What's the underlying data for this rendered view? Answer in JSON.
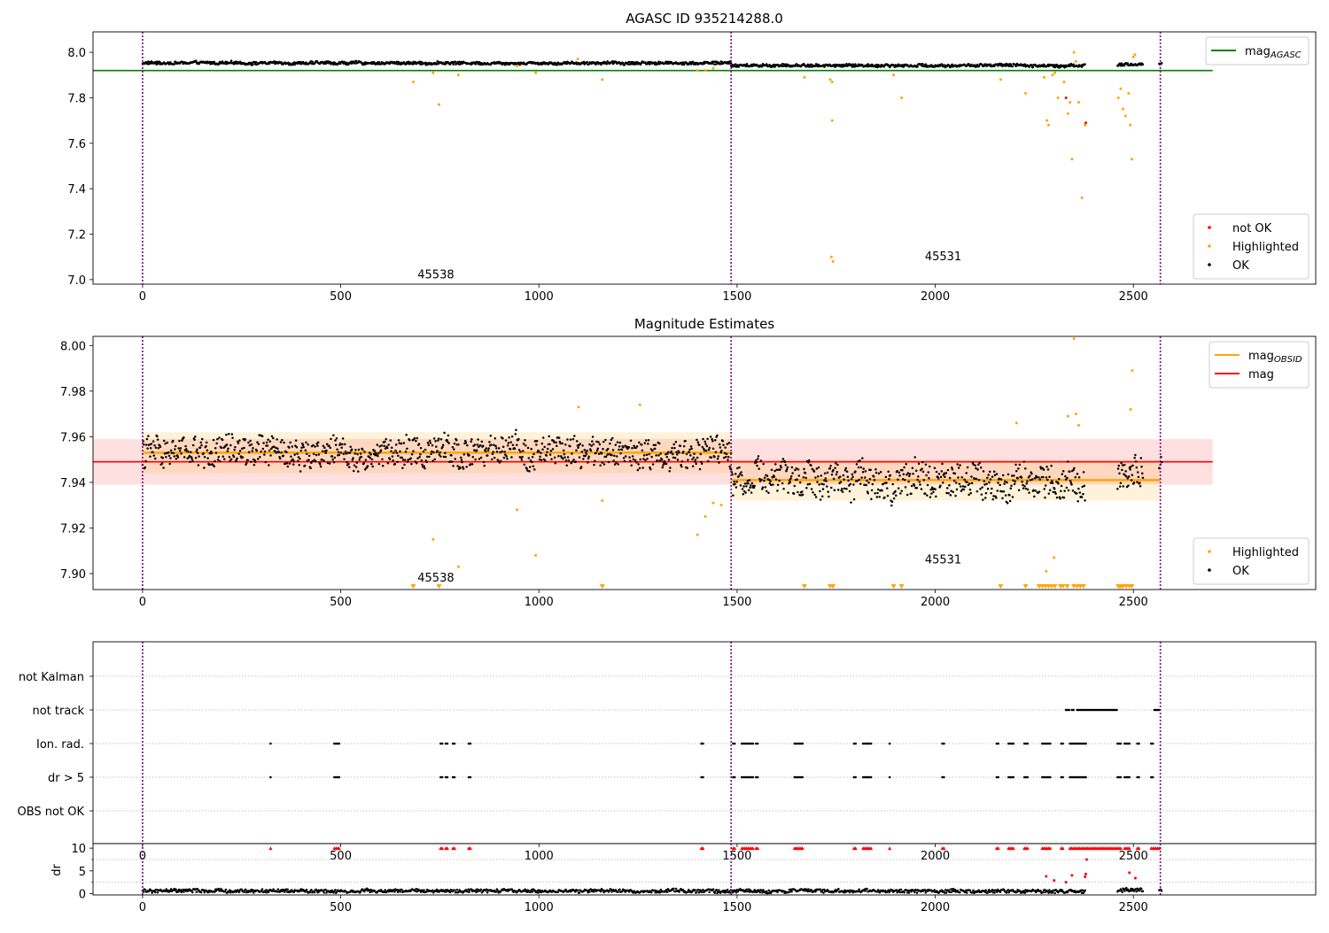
{
  "chart_data": [
    {
      "type": "scatter",
      "title": "AGASC ID 935214288.0",
      "xlim": [
        -125,
        2960
      ],
      "ylim": [
        6.98,
        8.09
      ],
      "xticks": [
        0,
        500,
        1000,
        1500,
        2000,
        2500
      ],
      "yticks": [
        7.0,
        7.2,
        7.4,
        7.6,
        7.8,
        8.0
      ],
      "ytick_labels": [
        "7.0",
        "7.2",
        "7.4",
        "7.6",
        "7.8",
        "8.0"
      ],
      "vlines": [
        0,
        1485,
        2568
      ],
      "hlines": [
        {
          "y": 7.92,
          "x0": -125,
          "x1": 2700,
          "color": "#008000"
        }
      ],
      "obsid_labels": [
        {
          "text": "45538",
          "x": 740,
          "y": 7.02
        },
        {
          "text": "45531",
          "x": 2020,
          "y": 7.1
        }
      ],
      "legend_upper": [
        {
          "label": "mag",
          "sub": "AGASC",
          "color": "#008000",
          "marker": "line"
        }
      ],
      "legend_lower": [
        {
          "label": "not OK",
          "color": "#ff0000",
          "marker": "dot"
        },
        {
          "label": "Highlighted",
          "color": "#ffa500",
          "marker": "dot"
        },
        {
          "label": "OK",
          "color": "#000000",
          "marker": "dot"
        }
      ],
      "series": [
        {
          "name": "OK",
          "color": "#000000",
          "segments": [
            {
              "x0": 0,
              "x1": 1485,
              "mean": 7.953,
              "spread": 0.006
            },
            {
              "x0": 1485,
              "x1": 2378,
              "mean": 7.942,
              "spread": 0.006
            },
            {
              "x0": 2460,
              "x1": 2525,
              "mean": 7.946,
              "spread": 0.006
            },
            {
              "x0": 2565,
              "x1": 2572,
              "mean": 7.95,
              "spread": 0.004
            }
          ]
        },
        {
          "name": "Highlighted",
          "color": "#ffa500",
          "points": [
            [
              683,
              7.87
            ],
            [
              733,
              7.91
            ],
            [
              748,
              7.77
            ],
            [
              797,
              7.9
            ],
            [
              945,
              7.94
            ],
            [
              992,
              7.91
            ],
            [
              1098,
              7.97
            ],
            [
              1160,
              7.88
            ],
            [
              1400,
              7.92
            ],
            [
              1420,
              7.92
            ],
            [
              1440,
              7.93
            ],
            [
              1670,
              7.89
            ],
            [
              1735,
              7.88
            ],
            [
              1740,
              7.87
            ],
            [
              1740,
              7.7
            ],
            [
              1738,
              7.1
            ],
            [
              1742,
              7.08
            ],
            [
              1895,
              7.9
            ],
            [
              1915,
              7.8
            ],
            [
              2165,
              7.88
            ],
            [
              2228,
              7.82
            ],
            [
              2275,
              7.89
            ],
            [
              2282,
              7.7
            ],
            [
              2286,
              7.68
            ],
            [
              2296,
              7.9
            ],
            [
              2302,
              7.91
            ],
            [
              2310,
              7.8
            ],
            [
              2325,
              7.87
            ],
            [
              2335,
              7.73
            ],
            [
              2340,
              7.78
            ],
            [
              2345,
              7.53
            ],
            [
              2350,
              8.0
            ],
            [
              2355,
              7.96
            ],
            [
              2362,
              7.78
            ],
            [
              2370,
              7.36
            ],
            [
              2378,
              7.68
            ],
            [
              2462,
              7.8
            ],
            [
              2468,
              7.84
            ],
            [
              2474,
              7.75
            ],
            [
              2480,
              7.72
            ],
            [
              2488,
              7.82
            ],
            [
              2492,
              7.68
            ],
            [
              2496,
              7.53
            ],
            [
              2500,
              7.98
            ],
            [
              2504,
              7.99
            ]
          ]
        },
        {
          "name": "not OK",
          "color": "#ff0000",
          "points": [
            [
              2330,
              7.8
            ],
            [
              2380,
              7.69
            ]
          ]
        }
      ]
    },
    {
      "type": "scatter",
      "title": "Magnitude Estimates",
      "xlim": [
        -125,
        2960
      ],
      "ylim": [
        7.893,
        8.004
      ],
      "xticks": [
        0,
        500,
        1000,
        1500,
        2000,
        2500
      ],
      "yticks": [
        7.9,
        7.92,
        7.94,
        7.96,
        7.98,
        8.0
      ],
      "ytick_labels": [
        "7.90",
        "7.92",
        "7.94",
        "7.96",
        "7.98",
        "8.00"
      ],
      "vlines": [
        0,
        1485,
        2568
      ],
      "mag_band": {
        "x0": -125,
        "x1": 2700,
        "mean": 7.949,
        "low": 7.939,
        "high": 7.959,
        "color": "#ff0000"
      },
      "obsid_mag": [
        {
          "x0": 0,
          "x1": 1485,
          "mean": 7.953,
          "low": 7.944,
          "high": 7.962
        },
        {
          "x0": 1485,
          "x1": 2568,
          "mean": 7.941,
          "low": 7.932,
          "high": 7.95
        }
      ],
      "obsid_labels": [
        {
          "text": "45538",
          "x": 740,
          "y": 7.898
        },
        {
          "text": "45531",
          "x": 2020,
          "y": 7.906
        }
      ],
      "legend_upper": [
        {
          "label": "mag",
          "sub": "OBSID",
          "color": "#ffa500",
          "marker": "line"
        },
        {
          "label": "mag",
          "sub": "",
          "color": "#ff0000",
          "marker": "line"
        }
      ],
      "legend_lower": [
        {
          "label": "Highlighted",
          "color": "#ffa500",
          "marker": "dot"
        },
        {
          "label": "OK",
          "color": "#000000",
          "marker": "dot"
        }
      ],
      "series": [
        {
          "name": "OK",
          "color": "#000000",
          "segments": [
            {
              "x0": 0,
              "x1": 1485,
              "mean": 7.953,
              "spread": 0.006
            },
            {
              "x0": 1485,
              "x1": 2378,
              "mean": 7.941,
              "spread": 0.007
            },
            {
              "x0": 2460,
              "x1": 2525,
              "mean": 7.944,
              "spread": 0.007
            },
            {
              "x0": 2565,
              "x1": 2572,
              "mean": 7.95,
              "spread": 0.004
            }
          ]
        },
        {
          "name": "Highlighted",
          "color": "#ffa500",
          "points": [
            [
              945,
              7.928
            ],
            [
              1100,
              7.973
            ],
            [
              1160,
              7.932
            ],
            [
              1255,
              7.974
            ],
            [
              1400,
              7.917
            ],
            [
              1420,
              7.925
            ],
            [
              1440,
              7.931
            ],
            [
              1460,
              7.93
            ],
            [
              733,
              7.915
            ],
            [
              797,
              7.903
            ],
            [
              992,
              7.908
            ],
            [
              2205,
              7.966
            ],
            [
              2280,
              7.901
            ],
            [
              2300,
              7.907
            ],
            [
              2335,
              7.969
            ],
            [
              2355,
              7.97
            ],
            [
              2362,
              7.965
            ],
            [
              2493,
              7.972
            ],
            [
              2497,
              7.989
            ],
            [
              2350,
              8.003
            ]
          ]
        },
        {
          "name": "Highlighted (below axis)",
          "color": "#ffa500",
          "marker": "triangle-down",
          "x": [
            683,
            748,
            1160,
            1670,
            1735,
            1742,
            1895,
            1915,
            2165,
            2228,
            2262,
            2270,
            2278,
            2286,
            2294,
            2302,
            2316,
            2322,
            2333,
            2350,
            2358,
            2366,
            2374,
            2462,
            2466,
            2470,
            2474,
            2482,
            2490,
            2496
          ]
        }
      ]
    },
    {
      "type": "scatter",
      "title": "",
      "xlim": [
        -125,
        2960
      ],
      "xticks": [
        0,
        500,
        1000,
        1500,
        2000,
        2500
      ],
      "vlines": [
        0,
        1485,
        2568
      ],
      "categories": [
        "not Kalman",
        "not track",
        "Ion. rad.",
        "dr > 5",
        "OBS not OK"
      ],
      "flag_runs": {
        "not track": [
          [
            2330,
            2340
          ],
          [
            2345,
            2350
          ],
          [
            2358,
            2460
          ],
          [
            2553,
            2568
          ]
        ],
        "Ion. rad.": [
          [
            323,
            326
          ],
          [
            484,
            497
          ],
          [
            752,
            757
          ],
          [
            765,
            770
          ],
          [
            783,
            787
          ],
          [
            823,
            827
          ],
          [
            1410,
            1414
          ],
          [
            1490,
            1494
          ],
          [
            1512,
            1540
          ],
          [
            1548,
            1552
          ],
          [
            1645,
            1668
          ],
          [
            1795,
            1800
          ],
          [
            1818,
            1840
          ],
          [
            1885,
            1888
          ],
          [
            2018,
            2025
          ],
          [
            2155,
            2160
          ],
          [
            2185,
            2200
          ],
          [
            2225,
            2235
          ],
          [
            2270,
            2290
          ],
          [
            2318,
            2325
          ],
          [
            2340,
            2380
          ],
          [
            2460,
            2470
          ],
          [
            2478,
            2490
          ],
          [
            2510,
            2515
          ],
          [
            2545,
            2550
          ]
        ],
        "dr > 5": [
          [
            323,
            326
          ],
          [
            484,
            497
          ],
          [
            752,
            757
          ],
          [
            765,
            770
          ],
          [
            783,
            787
          ],
          [
            823,
            827
          ],
          [
            1410,
            1414
          ],
          [
            1490,
            1494
          ],
          [
            1512,
            1540
          ],
          [
            1548,
            1552
          ],
          [
            1645,
            1668
          ],
          [
            1795,
            1800
          ],
          [
            1818,
            1840
          ],
          [
            1885,
            1888
          ],
          [
            2018,
            2025
          ],
          [
            2155,
            2160
          ],
          [
            2185,
            2200
          ],
          [
            2225,
            2235
          ],
          [
            2270,
            2290
          ],
          [
            2318,
            2325
          ],
          [
            2340,
            2380
          ],
          [
            2460,
            2470
          ],
          [
            2478,
            2490
          ],
          [
            2510,
            2515
          ],
          [
            2545,
            2550
          ]
        ]
      }
    },
    {
      "type": "scatter",
      "title": "",
      "xlim": [
        -125,
        2960
      ],
      "ylim": [
        -0.3,
        11
      ],
      "ylabel": "dr",
      "xticks": [
        0,
        500,
        1000,
        1500,
        2000,
        2500
      ],
      "yticks": [
        0,
        5,
        10
      ],
      "ytick_labels": [
        "0",
        "5",
        "10"
      ],
      "vlines": [
        0,
        1485,
        2568
      ],
      "series": [
        {
          "name": "dr",
          "color": "#000000",
          "segments": [
            {
              "x0": 0,
              "x1": 2378,
              "mean": 0.55,
              "spread": 0.35
            },
            {
              "x0": 2460,
              "x1": 2525,
              "mean": 0.7,
              "spread": 0.4
            },
            {
              "x0": 2565,
              "x1": 2572,
              "mean": 0.6,
              "spread": 0.3
            }
          ]
        },
        {
          "name": "dr > 5 (clipped at 10)",
          "color": "#ff0000",
          "marker": "triangle-up",
          "runs": [
            [
              323,
              326
            ],
            [
              484,
              497
            ],
            [
              752,
              757
            ],
            [
              765,
              770
            ],
            [
              783,
              787
            ],
            [
              823,
              827
            ],
            [
              1410,
              1414
            ],
            [
              1490,
              1494
            ],
            [
              1512,
              1540
            ],
            [
              1548,
              1552
            ],
            [
              1645,
              1668
            ],
            [
              1795,
              1800
            ],
            [
              1818,
              1840
            ],
            [
              1885,
              1888
            ],
            [
              2018,
              2025
            ],
            [
              2155,
              2160
            ],
            [
              2185,
              2200
            ],
            [
              2225,
              2235
            ],
            [
              2270,
              2290
            ],
            [
              2318,
              2325
            ],
            [
              2340,
              2470
            ],
            [
              2478,
              2490
            ],
            [
              2510,
              2515
            ],
            [
              2545,
              2568
            ]
          ]
        },
        {
          "name": "dr outliers",
          "color": "#ff0000",
          "points": [
            [
              2280,
              3.8
            ],
            [
              2300,
              2.9
            ],
            [
              2330,
              2.5
            ],
            [
              2345,
              4.0
            ],
            [
              2378,
              3.7
            ],
            [
              2380,
              4.3
            ],
            [
              2382,
              7.5
            ],
            [
              2490,
              4.6
            ],
            [
              2505,
              3.4
            ]
          ]
        }
      ]
    }
  ]
}
